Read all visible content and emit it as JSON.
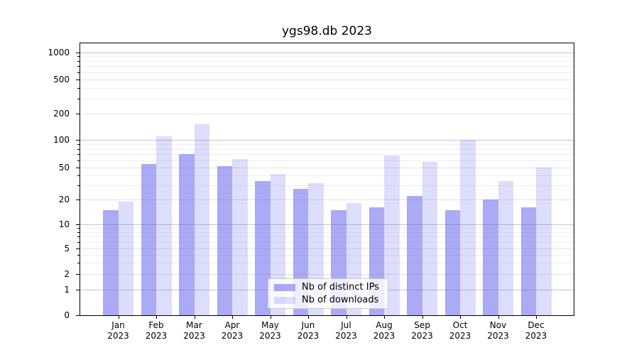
{
  "chart_data": {
    "type": "bar",
    "title": "ygs98.db 2023",
    "months": [
      "Jan",
      "Feb",
      "Mar",
      "Apr",
      "May",
      "Jun",
      "Jul",
      "Aug",
      "Sep",
      "Oct",
      "Nov",
      "Dec"
    ],
    "year": "2023",
    "series": [
      {
        "name": "Nb of distinct IPs",
        "color": "rgba(100,100,240,0.55)",
        "values": [
          15,
          55,
          70,
          52,
          34,
          27,
          15,
          16,
          22,
          15,
          20,
          16
        ]
      },
      {
        "name": "Nb of downloads",
        "color": "rgba(100,100,240,0.22)",
        "values": [
          19,
          110,
          150,
          62,
          42,
          32,
          18,
          68,
          58,
          100,
          34,
          50
        ]
      }
    ],
    "yticks": [
      0,
      1,
      2,
      5,
      10,
      20,
      50,
      100,
      200,
      500,
      1000
    ],
    "yscale": "log-like with 0 baseline",
    "ylim": [
      0,
      1300
    ],
    "grid": "horizontal, major and minor",
    "legend_position": "lower center"
  }
}
